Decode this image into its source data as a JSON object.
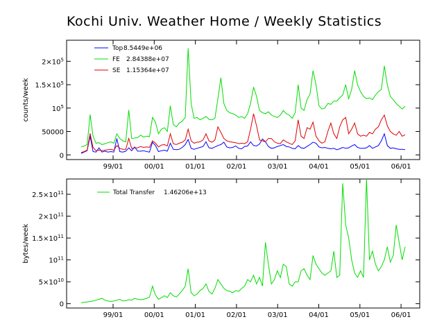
{
  "page": {
    "title": "Kochi Univ. Weather Home / Weekly Statistics"
  },
  "chart_data": [
    {
      "type": "line",
      "ylabel": "counts/week",
      "xlabel": "",
      "x_ticks": [
        "99/01",
        "00/01",
        "01/01",
        "02/01",
        "03/01",
        "04/01",
        "05/01",
        "06/01"
      ],
      "y_ticks": [
        {
          "value": 0,
          "base": "0",
          "exp": ""
        },
        {
          "value": 50000,
          "base": "50000",
          "exp": ""
        },
        {
          "value": 100000,
          "base": "10",
          "exp": "5"
        },
        {
          "value": 150000,
          "base": "1.5×10",
          "exp": "5"
        },
        {
          "value": 200000,
          "base": "2×10",
          "exp": "5"
        }
      ],
      "ylim": [
        -10000,
        245000
      ],
      "grid": false,
      "legend_position": "top-left",
      "series": [
        {
          "name": "Top",
          "total": "8.5449e+06",
          "color": "#0000ff",
          "values": [
            3000,
            6000,
            9000,
            40000,
            7000,
            6000,
            15000,
            6000,
            8000,
            6000,
            7000,
            6000,
            35000,
            7000,
            6000,
            8000,
            15000,
            9000,
            17000,
            8000,
            8000,
            9000,
            7000,
            6000,
            27000,
            20000,
            7000,
            9000,
            10000,
            8000,
            25000,
            12000,
            11000,
            12000,
            16000,
            22000,
            33000,
            14000,
            12000,
            14000,
            16000,
            18000,
            28000,
            15000,
            14000,
            17000,
            20000,
            22000,
            27000,
            17000,
            15000,
            16000,
            19000,
            14000,
            13000,
            18000,
            19000,
            28000,
            20000,
            19000,
            23000,
            34000,
            28000,
            18000,
            14000,
            15000,
            18000,
            20000,
            22000,
            18000,
            17000,
            14000,
            13000,
            20000,
            15000,
            14000,
            18000,
            22000,
            27000,
            25000,
            17000,
            15000,
            16000,
            14000,
            13000,
            14000,
            11000,
            13000,
            16000,
            14000,
            15000,
            19000,
            22000,
            16000,
            14000,
            14000,
            15000,
            20000,
            14000,
            17000,
            20000,
            30000,
            45000,
            20000,
            14000,
            15000,
            13000,
            12000,
            12000,
            11000
          ]
        },
        {
          "name": "FE",
          "total": "2.84388e+07",
          "color": "#00dd00",
          "values": [
            17000,
            19000,
            22000,
            86000,
            40000,
            25000,
            26000,
            22000,
            24000,
            26000,
            28000,
            25000,
            45000,
            35000,
            30000,
            28000,
            96000,
            35000,
            36000,
            37000,
            42000,
            38000,
            40000,
            39000,
            80000,
            70000,
            45000,
            55000,
            58000,
            50000,
            105000,
            65000,
            60000,
            68000,
            72000,
            80000,
            228000,
            110000,
            78000,
            80000,
            75000,
            78000,
            82000,
            76000,
            75000,
            78000,
            120000,
            165000,
            110000,
            95000,
            90000,
            88000,
            85000,
            80000,
            82000,
            78000,
            88000,
            110000,
            145000,
            125000,
            95000,
            90000,
            88000,
            92000,
            85000,
            82000,
            80000,
            85000,
            95000,
            88000,
            85000,
            78000,
            90000,
            150000,
            100000,
            95000,
            118000,
            130000,
            180000,
            150000,
            105000,
            98000,
            100000,
            110000,
            108000,
            115000,
            115000,
            122000,
            128000,
            150000,
            120000,
            140000,
            180000,
            150000,
            135000,
            125000,
            120000,
            122000,
            118000,
            128000,
            135000,
            140000,
            190000,
            150000,
            125000,
            118000,
            110000,
            104000,
            98000,
            104000
          ]
        },
        {
          "name": "SE",
          "total": "1.15364e+07",
          "color": "#dd0000",
          "values": [
            5000,
            7000,
            10000,
            46000,
            16000,
            9000,
            10000,
            9000,
            10000,
            11000,
            12000,
            10000,
            20000,
            14000,
            12000,
            12000,
            35000,
            14000,
            15000,
            15000,
            18000,
            16000,
            17000,
            16000,
            30000,
            25000,
            17000,
            21000,
            22000,
            19000,
            45000,
            24000,
            22000,
            25000,
            27000,
            32000,
            55000,
            30000,
            25000,
            27000,
            28000,
            32000,
            45000,
            30000,
            27000,
            32000,
            60000,
            48000,
            35000,
            30000,
            28000,
            27000,
            26000,
            24000,
            25000,
            24000,
            28000,
            55000,
            88000,
            62000,
            32000,
            30000,
            28000,
            35000,
            35000,
            28000,
            25000,
            24000,
            32000,
            28000,
            25000,
            22000,
            30000,
            75000,
            40000,
            35000,
            58000,
            55000,
            70000,
            40000,
            30000,
            25000,
            28000,
            50000,
            68000,
            45000,
            35000,
            60000,
            75000,
            80000,
            45000,
            55000,
            68000,
            45000,
            40000,
            42000,
            40000,
            48000,
            45000,
            55000,
            60000,
            75000,
            85000,
            62000,
            50000,
            45000,
            42000,
            50000,
            40000,
            43000
          ]
        }
      ]
    },
    {
      "type": "line",
      "ylabel": "bytes/week",
      "xlabel": "",
      "x_ticks": [
        "99/01",
        "00/01",
        "01/01",
        "02/01",
        "03/01",
        "04/01",
        "05/01",
        "06/01"
      ],
      "y_ticks": [
        {
          "value": 0,
          "base": "0",
          "exp": ""
        },
        {
          "value": 50,
          "base": "5×10",
          "exp": "10"
        },
        {
          "value": 100,
          "base": "10",
          "exp": "11"
        },
        {
          "value": 150,
          "base": "1.5×10",
          "exp": "11"
        },
        {
          "value": 200,
          "base": "2×10",
          "exp": "11"
        },
        {
          "value": 250,
          "base": "2.5×10",
          "exp": "11"
        }
      ],
      "y_unit": "1e9 bytes",
      "ylim": [
        -10,
        285
      ],
      "grid": false,
      "legend_position": "top-left",
      "series": [
        {
          "name": "Total Transfer",
          "total": "1.46206e+13",
          "color": "#00dd00",
          "values": [
            2,
            3,
            4,
            5,
            6,
            8,
            10,
            12,
            8,
            6,
            5,
            6,
            8,
            10,
            6,
            7,
            9,
            8,
            12,
            10,
            9,
            10,
            12,
            15,
            40,
            20,
            10,
            14,
            18,
            14,
            25,
            18,
            15,
            22,
            30,
            40,
            80,
            25,
            18,
            22,
            30,
            35,
            45,
            28,
            22,
            35,
            55,
            45,
            35,
            30,
            28,
            25,
            30,
            28,
            35,
            40,
            55,
            50,
            65,
            45,
            60,
            40,
            140,
            90,
            45,
            55,
            75,
            60,
            90,
            85,
            45,
            40,
            50,
            50,
            75,
            80,
            65,
            55,
            110,
            90,
            80,
            70,
            65,
            70,
            75,
            120,
            60,
            65,
            275,
            180,
            150,
            100,
            70,
            60,
            75,
            60,
            285,
            100,
            120,
            90,
            75,
            85,
            100,
            130,
            95,
            110,
            180,
            140,
            100,
            130
          ]
        }
      ]
    }
  ]
}
